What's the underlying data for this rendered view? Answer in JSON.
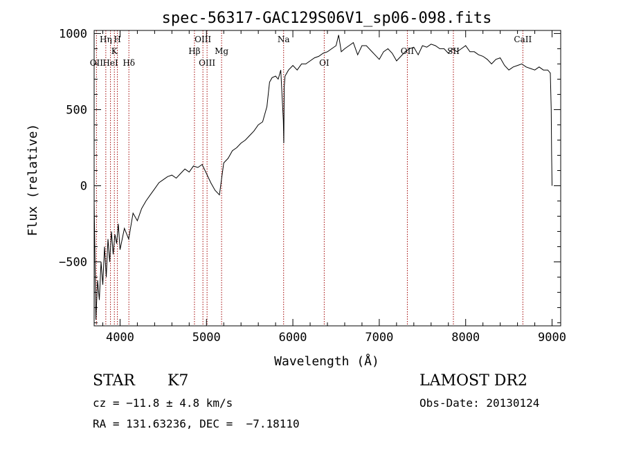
{
  "chart_data": {
    "type": "line",
    "title": "spec-56317-GAC129S06V1_sp06-098.fits",
    "xlabel": "Wavelength (Å)",
    "ylabel": "Flux (relative)",
    "xlim": [
      3700,
      9100
    ],
    "ylim": [
      -920,
      1020
    ],
    "xticks": [
      4000,
      5000,
      6000,
      7000,
      8000,
      9000
    ],
    "yticks": [
      -500,
      0,
      500,
      1000
    ],
    "grid": false,
    "series": [
      {
        "x": [
          3700,
          3720,
          3740,
          3760,
          3780,
          3800,
          3820,
          3840,
          3860,
          3880,
          3900,
          3920,
          3940,
          3960,
          3980,
          4000,
          4050,
          4100,
          4150,
          4200,
          4250,
          4300,
          4350,
          4400,
          4450,
          4500,
          4550,
          4600,
          4650,
          4700,
          4750,
          4800,
          4850,
          4900,
          4950,
          5000,
          5050,
          5100,
          5150,
          5200,
          5250,
          5300,
          5350,
          5400,
          5450,
          5500,
          5550,
          5600,
          5650,
          5700,
          5730,
          5760,
          5800,
          5830,
          5860,
          5890,
          5895,
          5900,
          5910,
          5950,
          6000,
          6050,
          6100,
          6150,
          6200,
          6250,
          6300,
          6350,
          6400,
          6450,
          6500,
          6530,
          6560,
          6600,
          6650,
          6700,
          6750,
          6800,
          6850,
          6900,
          6950,
          7000,
          7050,
          7100,
          7150,
          7200,
          7250,
          7300,
          7350,
          7400,
          7450,
          7500,
          7550,
          7600,
          7650,
          7700,
          7750,
          7800,
          7850,
          7900,
          7950,
          8000,
          8050,
          8100,
          8150,
          8200,
          8250,
          8300,
          8350,
          8400,
          8450,
          8500,
          8550,
          8600,
          8650,
          8700,
          8750,
          8800,
          8850,
          8900,
          8950,
          8980,
          8990,
          8995,
          9000
        ],
        "y": [
          -100,
          -880,
          -620,
          -750,
          -500,
          -650,
          -400,
          -600,
          -350,
          -500,
          -300,
          -450,
          -320,
          -380,
          -250,
          -420,
          -280,
          -350,
          -180,
          -230,
          -150,
          -100,
          -60,
          -20,
          20,
          40,
          60,
          70,
          50,
          80,
          110,
          90,
          130,
          120,
          140,
          80,
          20,
          -30,
          -60,
          150,
          180,
          230,
          250,
          280,
          300,
          330,
          360,
          400,
          420,
          520,
          680,
          710,
          720,
          700,
          760,
          430,
          280,
          650,
          720,
          760,
          790,
          760,
          800,
          800,
          820,
          840,
          850,
          870,
          880,
          900,
          920,
          990,
          880,
          900,
          920,
          940,
          860,
          920,
          920,
          890,
          860,
          830,
          880,
          900,
          870,
          820,
          850,
          880,
          900,
          910,
          860,
          920,
          910,
          930,
          920,
          900,
          900,
          870,
          900,
          880,
          900,
          920,
          880,
          880,
          860,
          850,
          830,
          800,
          830,
          840,
          790,
          760,
          780,
          790,
          800,
          780,
          770,
          760,
          780,
          760,
          760,
          740,
          500,
          200,
          0
        ]
      }
    ],
    "lines": [
      {
        "name": "OII",
        "wl": 3727,
        "row": 3
      },
      {
        "name": "Hη",
        "wl": 3835,
        "row": 1
      },
      {
        "name": "HeI",
        "wl": 3889,
        "row": 3
      },
      {
        "name": "K",
        "wl": 3934,
        "row": 2
      },
      {
        "name": "H",
        "wl": 3969,
        "row": 1
      },
      {
        "name": "Hδ",
        "wl": 4102,
        "row": 3
      },
      {
        "name": "Hβ",
        "wl": 4861,
        "row": 2
      },
      {
        "name": "OIII",
        "wl": 4959,
        "row": 1
      },
      {
        "name": "OIII",
        "wl": 5007,
        "row": 3
      },
      {
        "name": "Mg",
        "wl": 5175,
        "row": 2
      },
      {
        "name": "Na",
        "wl": 5893,
        "row": 1
      },
      {
        "name": "OI",
        "wl": 6363,
        "row": 3
      },
      {
        "name": "OII",
        "wl": 7325,
        "row": 2
      },
      {
        "name": "SII",
        "wl": 7858,
        "row": 2
      },
      {
        "name": "CaII",
        "wl": 8662,
        "row": 1
      }
    ]
  },
  "info": {
    "object_type": "STAR",
    "subclass": "K7",
    "survey": "LAMOST DR2",
    "cz": "cz = −11.8 ± 4.8 km/s",
    "obs_date": "Obs-Date: 20130124",
    "coords": "RA = 131.63236, DEC =  −7.18110"
  },
  "colors": {
    "line": "#000000",
    "marker": "#a00000",
    "background": "#ffffff"
  }
}
